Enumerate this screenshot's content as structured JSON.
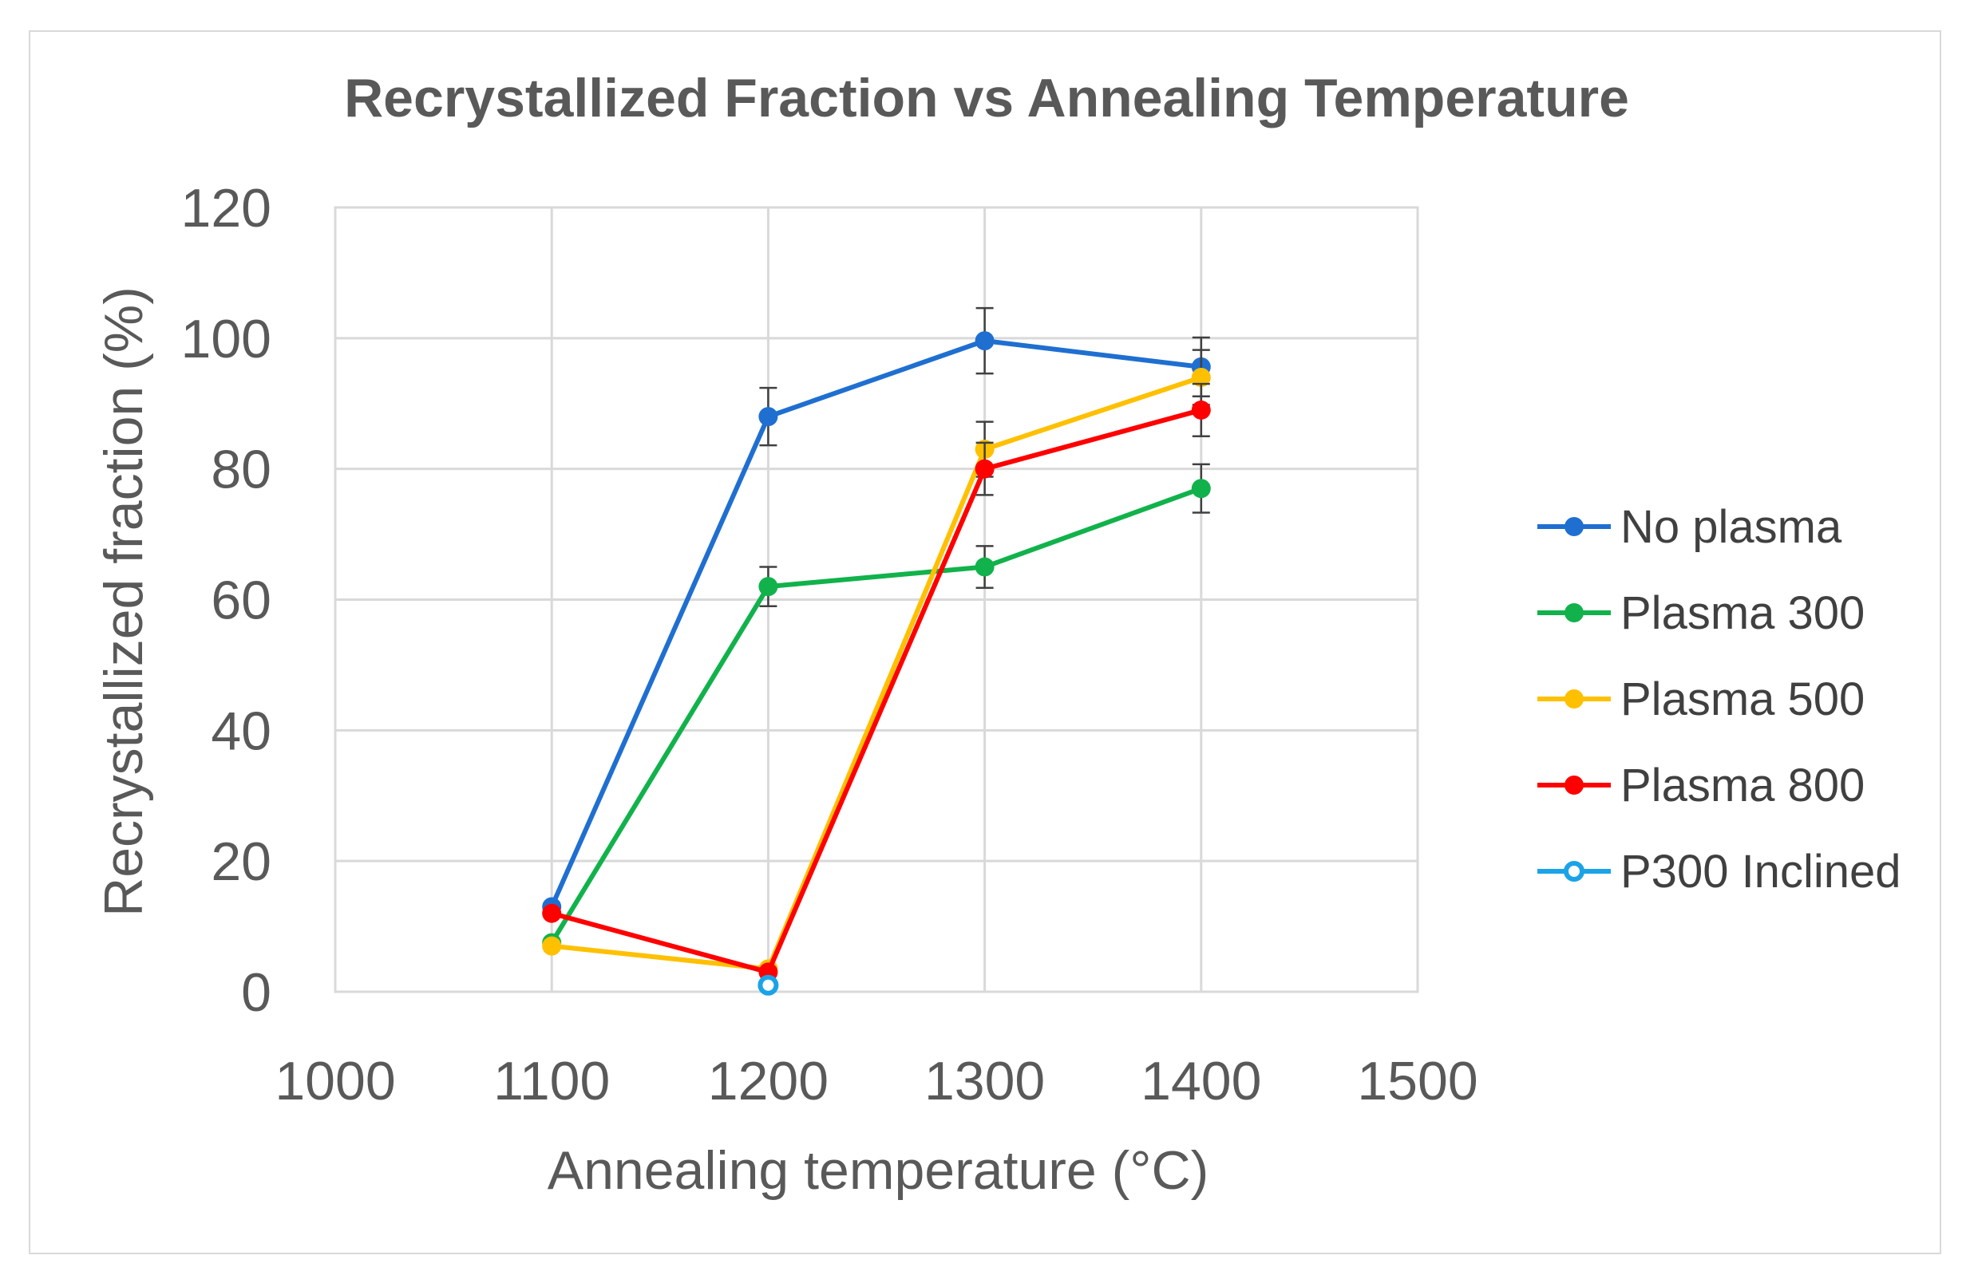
{
  "chart_data": {
    "type": "line",
    "title": "Recrystallized Fraction vs Annealing Temperature",
    "xlabel": "Annealing temperature (°C)",
    "ylabel": "Recrystallized fraction (%)",
    "xlim": [
      1000,
      1500
    ],
    "ylim": [
      0,
      120
    ],
    "xticks": [
      1000,
      1100,
      1200,
      1300,
      1400,
      1500
    ],
    "yticks": [
      0,
      20,
      40,
      60,
      80,
      100,
      120
    ],
    "x_tick_labels": [
      "1000",
      "1100",
      "1200",
      "1300",
      "1400",
      "1500"
    ],
    "y_tick_labels": [
      "0",
      "20",
      "40",
      "60",
      "80",
      "100",
      "120"
    ],
    "grid": true,
    "legend_position": "right",
    "series": [
      {
        "name": "No plasma",
        "color": "#1f6fd1",
        "marker": "filled",
        "x": [
          1100,
          1200,
          1300,
          1400
        ],
        "y": [
          13,
          88,
          99.6,
          95.6
        ],
        "err": [
          null,
          4.4,
          5,
          4.5
        ]
      },
      {
        "name": "Plasma 300",
        "color": "#11b24b",
        "marker": "filled",
        "x": [
          1100,
          1200,
          1300,
          1400
        ],
        "y": [
          7.5,
          62,
          65,
          77
        ],
        "err": [
          null,
          3,
          3.2,
          3.7
        ]
      },
      {
        "name": "Plasma 500",
        "color": "#ffc000",
        "marker": "filled",
        "x": [
          1100,
          1200,
          1300,
          1400
        ],
        "y": [
          7,
          3.5,
          83,
          94
        ],
        "err": [
          null,
          null,
          4.2,
          4.2
        ]
      },
      {
        "name": "Plasma 800",
        "color": "#ff0000",
        "marker": "filled",
        "x": [
          1100,
          1200,
          1300,
          1400
        ],
        "y": [
          12,
          3,
          80,
          89
        ],
        "err": [
          null,
          null,
          4,
          4
        ]
      },
      {
        "name": "P300 Inclined",
        "color": "#1ba3e8",
        "marker": "hollow",
        "x": [
          1200
        ],
        "y": [
          1
        ],
        "err": [
          null
        ]
      }
    ]
  }
}
